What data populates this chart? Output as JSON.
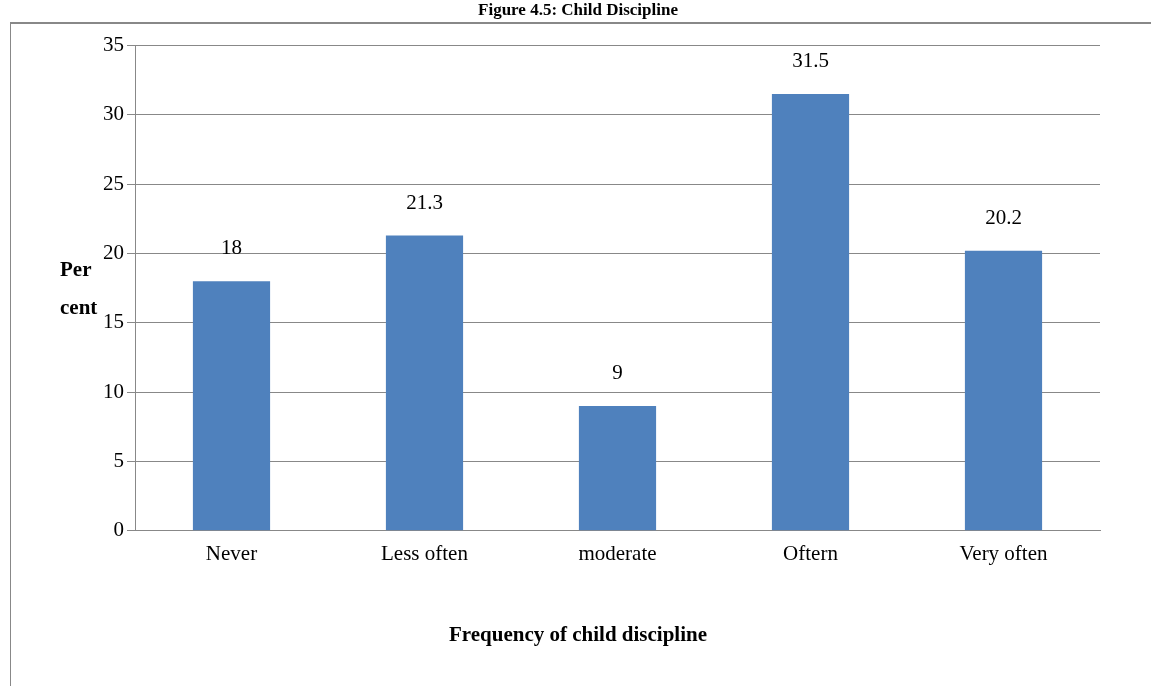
{
  "chart_data": {
    "type": "bar",
    "title": "Figure 4.5: Child Discipline",
    "xlabel": "Frequency of child discipline",
    "ylabel": "Percent",
    "categories": [
      "Never",
      "Less often",
      "moderate",
      "Oftern",
      "Very often"
    ],
    "values": [
      18,
      21.3,
      9,
      31.5,
      20.2
    ],
    "color": "#4f81bd",
    "ylim": [
      0,
      35
    ],
    "yticks": [
      0,
      5,
      10,
      15,
      20,
      25,
      30,
      35
    ],
    "grid": "y",
    "data_labels": true
  }
}
